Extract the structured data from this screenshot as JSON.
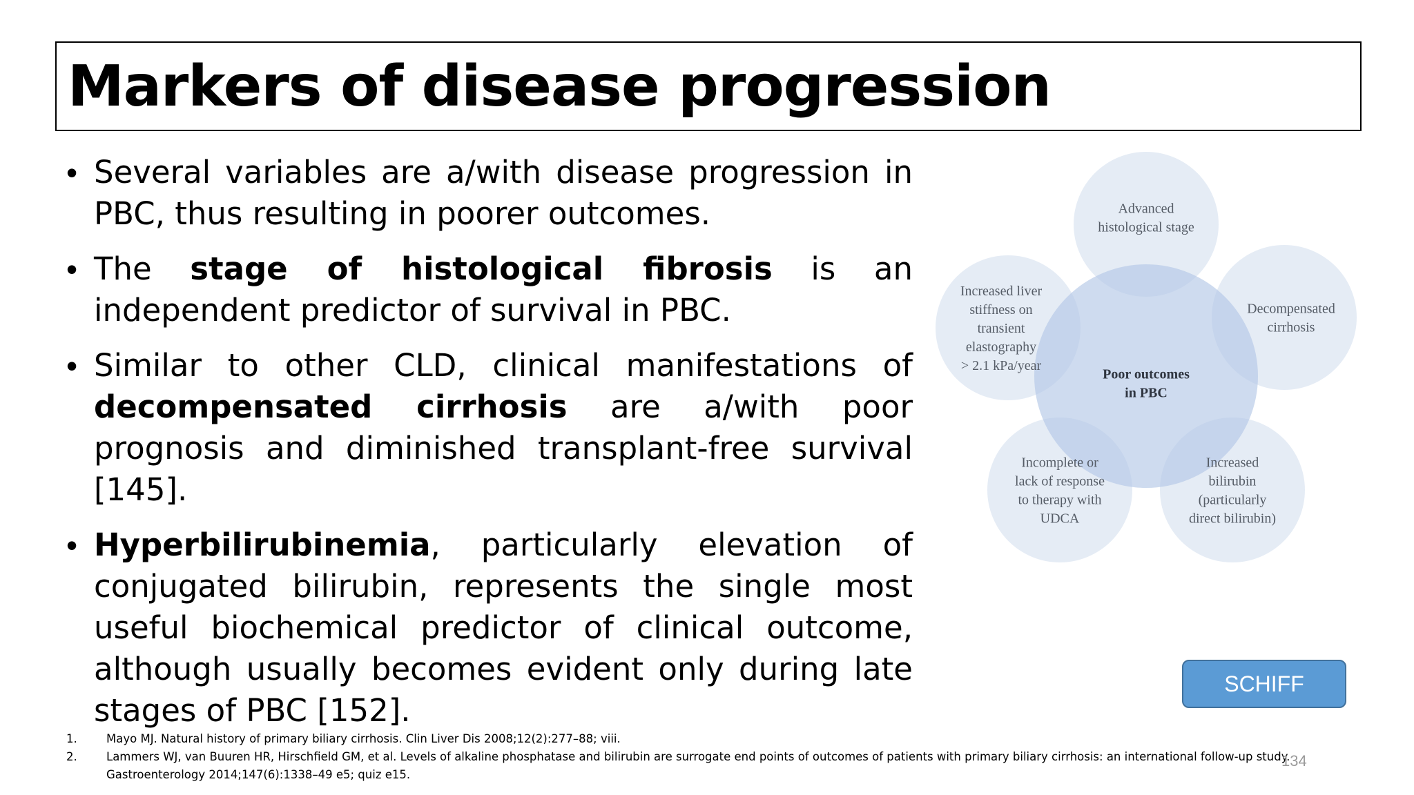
{
  "slide": {
    "title": "Markers of disease progression",
    "page_number": "134"
  },
  "bullets": [
    {
      "parts": [
        {
          "text": "Several variables are a/with disease progression in PBC, thus resulting in poorer outcomes.",
          "bold": false
        }
      ]
    },
    {
      "parts": [
        {
          "text": "The ",
          "bold": false
        },
        {
          "text": "stage of histological fibrosis",
          "bold": true
        },
        {
          "text": " is an independent predictor of survival in PBC.",
          "bold": false
        }
      ]
    },
    {
      "parts": [
        {
          "text": "Similar to other CLD, clinical manifestations of ",
          "bold": false
        },
        {
          "text": "decompensated cirrhosis",
          "bold": true
        },
        {
          "text": " are a/with poor prognosis and diminished transplant-free survival [145].",
          "bold": false
        }
      ]
    },
    {
      "parts": [
        {
          "text": "Hyperbilirubinemia",
          "bold": true
        },
        {
          "text": ", particularly elevation of conjugated bilirubin, represents the single most useful biochemical predictor of clinical outcome, although usually becomes evident only during late stages of PBC [152].",
          "bold": false
        }
      ]
    }
  ],
  "diagram": {
    "center": [
      "Poor outcomes",
      "in PBC"
    ],
    "petals": [
      [
        "Advanced",
        "histological stage"
      ],
      [
        "Decompensated",
        "cirrhosis"
      ],
      [
        "Increased",
        "bilirubin",
        "(particularly",
        "direct bilirubin)"
      ],
      [
        "Incomplete or",
        "lack of response",
        "to therapy with",
        "UDCA"
      ],
      [
        "Increased liver",
        "stiffness on",
        "transient",
        "elastography",
        "> 2.1 kPa/year"
      ]
    ],
    "colors": {
      "petal_fill": "#dce6f2",
      "center_fill": "#b4c7e7"
    }
  },
  "button": {
    "label": "SCHIFF",
    "color": "#5b9bd5"
  },
  "references": [
    {
      "num": "1.",
      "text": "Mayo MJ. Natural history of primary biliary cirrhosis. Clin Liver Dis 2008;12(2):277–88; viii."
    },
    {
      "num": "2.",
      "text": "Lammers WJ, van Buuren HR, Hirschfield GM, et al. Levels of alkaline phosphatase and bilirubin are surrogate end points of outcomes of patients with primary biliary cirrhosis: an international follow-up study. Gastroenterology 2014;147(6):1338–49 e5; quiz e15."
    }
  ]
}
